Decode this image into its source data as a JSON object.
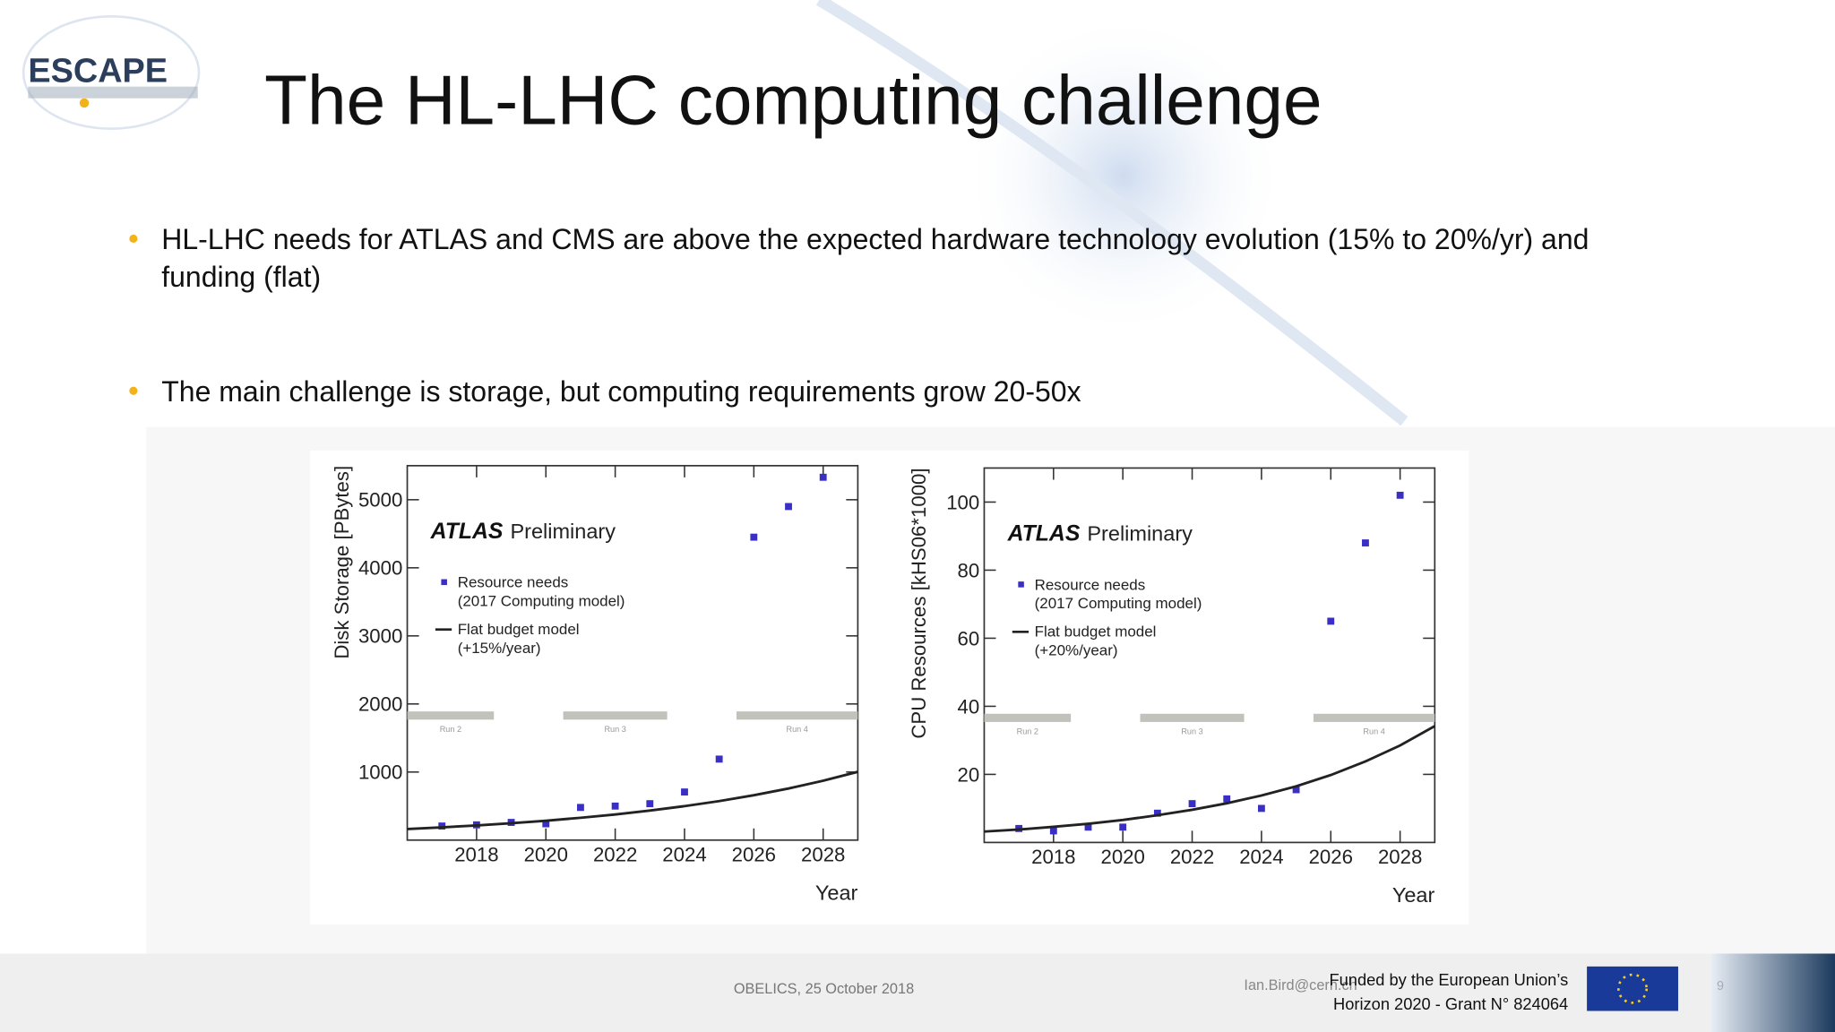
{
  "slide": {
    "logo": "ESCAPE",
    "title": "The HL-LHC computing challenge",
    "bullets": [
      "HL-LHC needs for ATLAS and CMS are above the expected hardware technology evolution (15% to 20%/yr) and",
      "funding (flat)",
      "The main challenge is storage, but computing requirements grow 20-50x"
    ],
    "footer": {
      "event": "OBELICS, 25 October 2018",
      "author": "Ian.Bird@cern.ch",
      "funding": [
        "Funded by the European Union’s",
        "Horizon 2020 - Grant N° 824064"
      ],
      "page": "9"
    }
  },
  "chart_data": [
    {
      "type": "scatter",
      "experiment": "ATLAS",
      "status": "Preliminary",
      "y_label": "Disk Storage [PBytes]",
      "x_label": "Year",
      "xlim": [
        2016,
        2029
      ],
      "xticks": [
        2018,
        2020,
        2022,
        2024,
        2026,
        2028
      ],
      "ylim": [
        0,
        5500
      ],
      "yticks": [
        1000,
        2000,
        3000,
        4000,
        5000
      ],
      "series": [
        {
          "name": "Resource needs",
          "name_detail": "(2017 Computing model)",
          "style": "marker",
          "color": "#3a2fc4",
          "x": [
            2017,
            2018,
            2019,
            2020,
            2021,
            2022,
            2023,
            2024,
            2025,
            2026,
            2027,
            2028
          ],
          "values": [
            207,
            224,
            260,
            240,
            480,
            500,
            535,
            707,
            1190,
            4450,
            4900,
            5330
          ]
        },
        {
          "name": "Flat budget model",
          "name_detail": "(+15%/year)",
          "style": "line",
          "color": "#222222",
          "x": [
            2016,
            2017,
            2018,
            2019,
            2020,
            2021,
            2022,
            2023,
            2024,
            2025,
            2026,
            2027,
            2028,
            2029
          ],
          "values": [
            163,
            187,
            216,
            248,
            285,
            328,
            377,
            434,
            499,
            573,
            659,
            758,
            872,
            1003
          ]
        }
      ],
      "runs": [
        {
          "label": "Run 2",
          "start": 2016,
          "end": 2018.5,
          "level": 1830
        },
        {
          "label": "Run 3",
          "start": 2020.5,
          "end": 2023.5,
          "level": 1830
        },
        {
          "label": "Run 4",
          "start": 2025.5,
          "end": 2029,
          "level": 1830
        }
      ]
    },
    {
      "type": "scatter",
      "experiment": "ATLAS",
      "status": "Preliminary",
      "y_label": "CPU Resources [kHS06*1000]",
      "x_label": "Year",
      "xlim": [
        2016,
        2029
      ],
      "xticks": [
        2018,
        2020,
        2022,
        2024,
        2026,
        2028
      ],
      "ylim": [
        0,
        110
      ],
      "yticks": [
        20,
        40,
        60,
        80,
        100
      ],
      "series": [
        {
          "name": "Resource needs",
          "name_detail": "(2017 Computing model)",
          "style": "marker",
          "color": "#3a2fc4",
          "x": [
            2017,
            2018,
            2019,
            2020,
            2021,
            2022,
            2023,
            2024,
            2025,
            2026,
            2027,
            2028
          ],
          "values": [
            4.1,
            3.4,
            4.5,
            4.5,
            8.6,
            11.4,
            12.8,
            10,
            15.5,
            65,
            88,
            102
          ]
        },
        {
          "name": "Flat budget model",
          "name_detail": "(+20%/year)",
          "style": "line",
          "color": "#222222",
          "x": [
            2016,
            2017,
            2018,
            2019,
            2020,
            2021,
            2022,
            2023,
            2024,
            2025,
            2026,
            2027,
            2028,
            2029
          ],
          "values": [
            3.2,
            3.8,
            4.6,
            5.5,
            6.6,
            8.0,
            9.6,
            11.5,
            13.8,
            16.5,
            19.8,
            23.8,
            28.5,
            34.2
          ]
        }
      ],
      "runs": [
        {
          "label": "Run 2",
          "start": 2016,
          "end": 2018.5,
          "level": 36.6
        },
        {
          "label": "Run 3",
          "start": 2020.5,
          "end": 2023.5,
          "level": 36.6
        },
        {
          "label": "Run 4",
          "start": 2025.5,
          "end": 2029,
          "level": 36.6
        }
      ]
    }
  ]
}
